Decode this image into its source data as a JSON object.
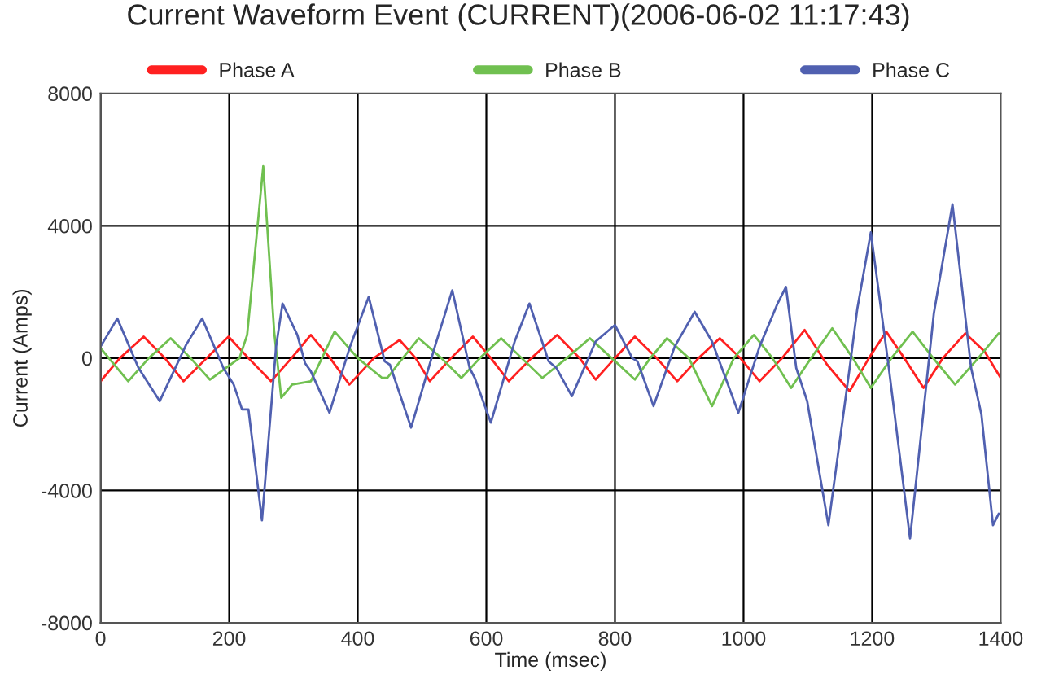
{
  "chart_data": {
    "type": "line",
    "title": "Current Waveform Event (CURRENT)(2006-06-02 11:17:43)",
    "xlabel": "Time (msec)",
    "ylabel": "Current (Amps)",
    "xlim": [
      0,
      1400
    ],
    "xticks": [
      0,
      200,
      400,
      600,
      800,
      1000,
      1200,
      1400
    ],
    "ylim": [
      -8000,
      8000
    ],
    "yticks": [
      -8000,
      -4000,
      0,
      4000,
      8000
    ],
    "grid": true,
    "legend": "top",
    "marker": "none",
    "line_style": "solid",
    "series": [
      {
        "name": "Phase A",
        "color": "#ff2020",
        "x": [
          0,
          30,
          67,
          100,
          129,
          165,
          199,
          230,
          265,
          297,
          327,
          357,
          387,
          425,
          465,
          490,
          512,
          545,
          579,
          607,
          635,
          670,
          710,
          745,
          770,
          800,
          831,
          865,
          897,
          930,
          963,
          995,
          1025,
          1060,
          1095,
          1130,
          1165,
          1195,
          1222,
          1250,
          1280,
          1310,
          1345,
          1375,
          1400
        ],
        "values": [
          -700,
          0,
          650,
          0,
          -700,
          0,
          650,
          0,
          -700,
          0,
          700,
          0,
          -800,
          0,
          550,
          0,
          -700,
          0,
          650,
          0,
          -700,
          0,
          700,
          0,
          -650,
          0,
          650,
          0,
          -700,
          0,
          600,
          0,
          -700,
          0,
          850,
          -200,
          -1000,
          0,
          800,
          0,
          -900,
          0,
          750,
          200,
          -600
        ]
      },
      {
        "name": "Phase B",
        "color": "#70c050",
        "x": [
          0,
          43,
          75,
          109,
          140,
          170,
          216,
          228,
          253,
          270,
          281,
          298,
          327,
          364,
          400,
          438,
          446,
          470,
          495,
          530,
          561,
          590,
          623,
          655,
          687,
          725,
          761,
          795,
          831,
          855,
          881,
          915,
          951,
          985,
          1016,
          1045,
          1074,
          1105,
          1138,
          1170,
          1198,
          1230,
          1263,
          1295,
          1329,
          1365,
          1397
        ],
        "values": [
          300,
          -700,
          0,
          600,
          0,
          -650,
          0,
          700,
          5800,
          800,
          -1200,
          -800,
          -700,
          800,
          0,
          -600,
          -600,
          0,
          600,
          0,
          -600,
          0,
          600,
          0,
          -600,
          0,
          600,
          0,
          -650,
          0,
          600,
          0,
          -1450,
          0,
          700,
          0,
          -900,
          0,
          900,
          0,
          -900,
          0,
          800,
          0,
          -800,
          0,
          750
        ]
      },
      {
        "name": "Phase C",
        "color": "#5060b0",
        "x": [
          0,
          26,
          59,
          92,
          133,
          158,
          191,
          207,
          220,
          230,
          251,
          273,
          283,
          306,
          318,
          327,
          356,
          388,
          417,
          442,
          450,
          483,
          520,
          547,
          574,
          582,
          607,
          644,
          667,
          697,
          709,
          733,
          770,
          800,
          827,
          835,
          860,
          893,
          924,
          951,
          992,
          1025,
          1053,
          1066,
          1082,
          1099,
          1132,
          1165,
          1177,
          1198,
          1226,
          1259,
          1296,
          1325,
          1354,
          1370,
          1388,
          1397
        ],
        "values": [
          350,
          1200,
          -300,
          -1300,
          400,
          1200,
          -300,
          -800,
          -1550,
          -1550,
          -4900,
          350,
          1650,
          700,
          -150,
          -400,
          -1650,
          350,
          1850,
          -100,
          -200,
          -2100,
          350,
          2050,
          -300,
          -600,
          -1950,
          500,
          1650,
          -100,
          -300,
          -1150,
          500,
          1000,
          0,
          -100,
          -1450,
          350,
          1400,
          500,
          -1650,
          350,
          1650,
          2150,
          -300,
          -1300,
          -5050,
          -300,
          1500,
          3800,
          -300,
          -5450,
          1350,
          4650,
          -300,
          -1700,
          -5050,
          -4700
        ]
      }
    ]
  }
}
